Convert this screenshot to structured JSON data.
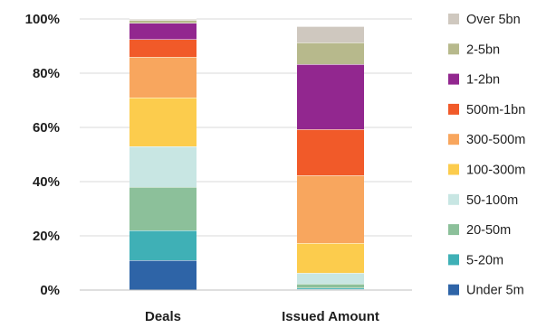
{
  "chart_data": {
    "type": "bar",
    "stacked": true,
    "percent": true,
    "categories": [
      "Deals",
      "Issued Amount"
    ],
    "ylim": [
      0,
      100
    ],
    "yticks": [
      "0%",
      "20%",
      "40%",
      "60%",
      "80%",
      "100%"
    ],
    "grid": true,
    "legend_position": "right",
    "series": [
      {
        "name": "Under 5m",
        "color": "#2e64a7",
        "values": [
          11,
          0.3
        ]
      },
      {
        "name": "5-20m",
        "color": "#3fb0b6",
        "values": [
          11,
          0.5
        ]
      },
      {
        "name": "20-50m",
        "color": "#8cc09a",
        "values": [
          16,
          1.5
        ]
      },
      {
        "name": "50-100m",
        "color": "#c8e6e3",
        "values": [
          15,
          4
        ]
      },
      {
        "name": "100-300m",
        "color": "#fccc4d",
        "values": [
          18,
          11
        ]
      },
      {
        "name": "300-500m",
        "color": "#f8a65e",
        "values": [
          15,
          25
        ]
      },
      {
        "name": "500m-1bn",
        "color": "#f15a29",
        "values": [
          6.5,
          17
        ]
      },
      {
        "name": "1-2bn",
        "color": "#92278f",
        "values": [
          6,
          24
        ]
      },
      {
        "name": "2-5bn",
        "color": "#b7b98c",
        "values": [
          1,
          8
        ]
      },
      {
        "name": "Over 5bn",
        "color": "#cfc8bf",
        "values": [
          0.5,
          6
        ]
      }
    ]
  }
}
